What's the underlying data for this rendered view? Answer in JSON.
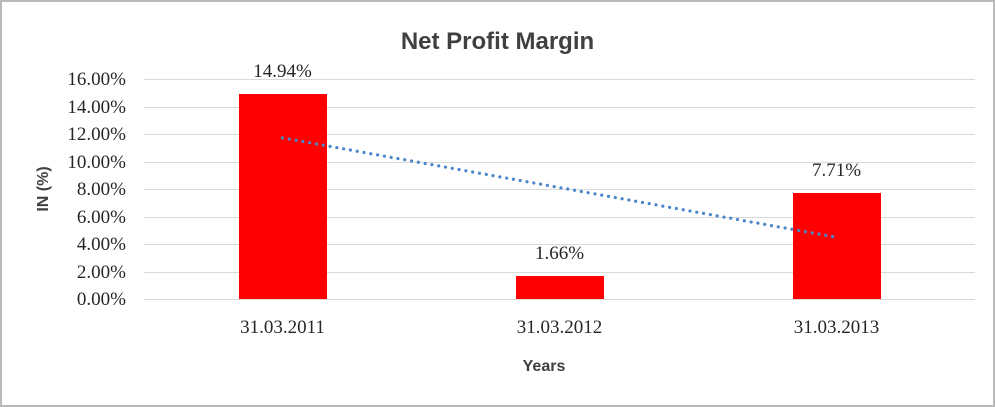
{
  "chart_data": {
    "type": "bar",
    "title": "Net Profit Margin",
    "xlabel": "Years",
    "ylabel": "IN (%)",
    "categories": [
      "31.03.2011",
      "31.03.2012",
      "31.03.2013"
    ],
    "values": [
      14.94,
      1.66,
      7.71
    ],
    "data_labels": [
      "14.94%",
      "1.66%",
      "7.71%"
    ],
    "ylim": [
      0,
      16
    ],
    "ytick_step": 2,
    "ytick_labels": [
      "0.00%",
      "2.00%",
      "4.00%",
      "6.00%",
      "8.00%",
      "10.00%",
      "12.00%",
      "14.00%",
      "16.00%"
    ],
    "grid": true,
    "legend": "none",
    "bar_color": "#ff0000",
    "gridline_color": "#d9d9d9",
    "trendline": {
      "type": "linear",
      "style": "dotted",
      "color": "#4a86c8",
      "start_value": 11.72,
      "end_value": 4.49
    }
  }
}
